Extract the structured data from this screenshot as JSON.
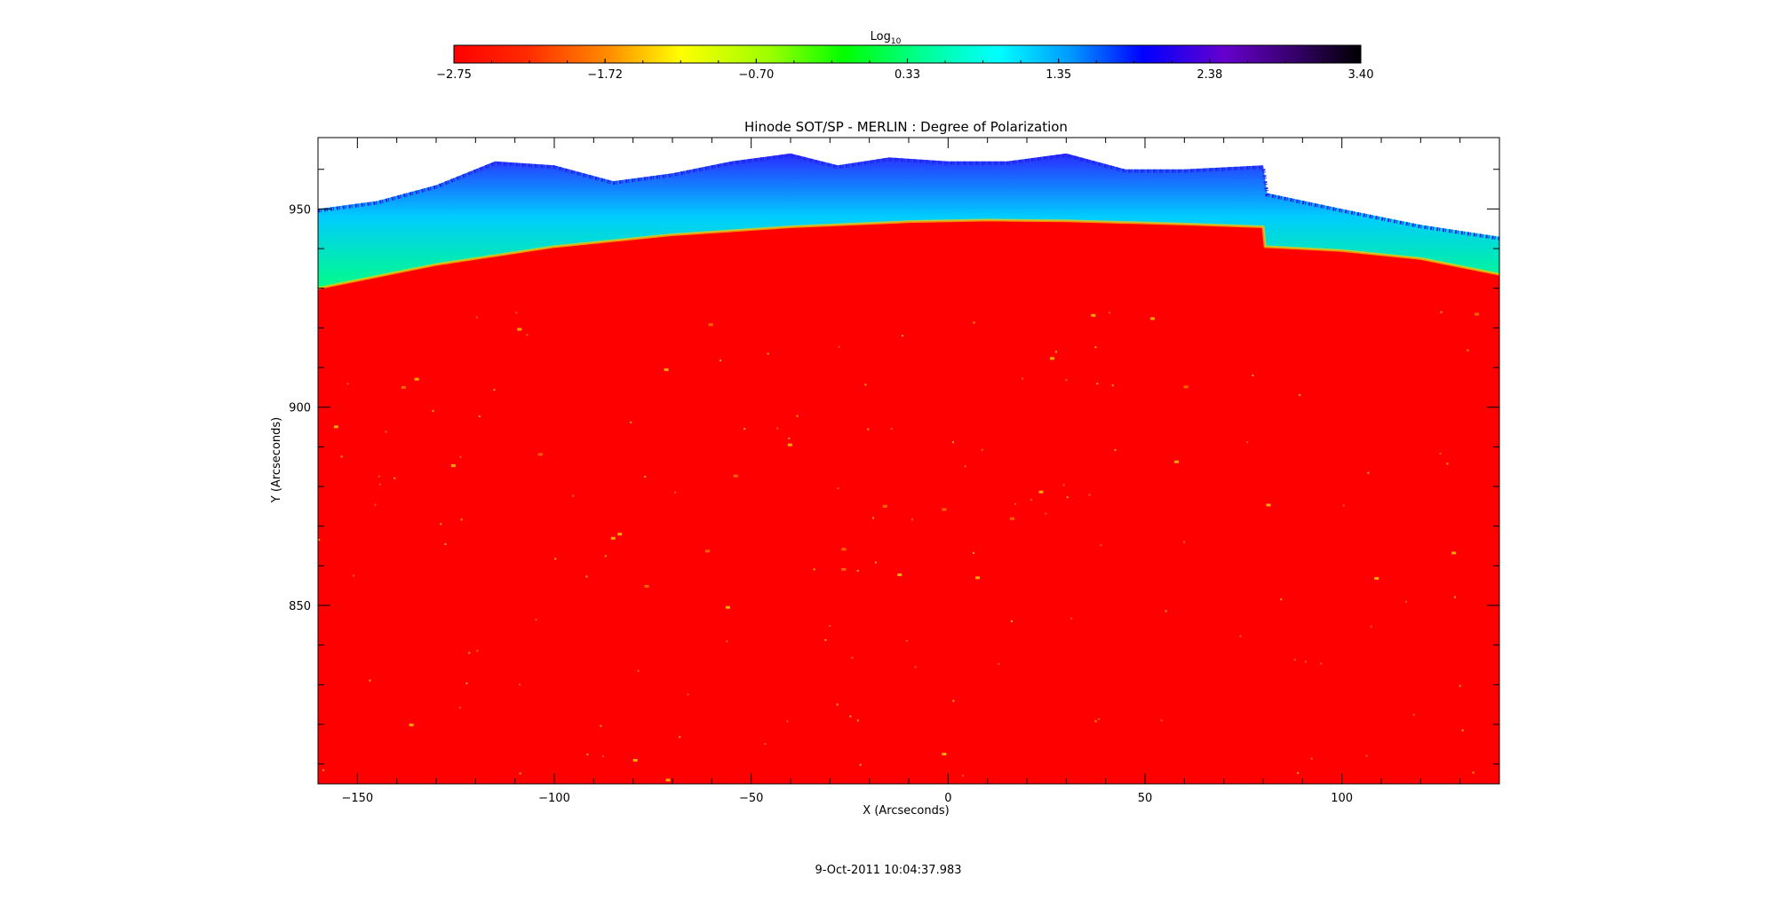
{
  "chart_data": {
    "type": "heatmap",
    "title": "Hinode SOT/SP - MERLIN : Degree of Polarization",
    "xlabel": "X (Arcseconds)",
    "ylabel": "Y (Arcseconds)",
    "xlim": [
      -160,
      140
    ],
    "ylim": [
      805,
      968
    ],
    "x_ticks": [
      -150,
      -100,
      -50,
      0,
      50,
      100
    ],
    "y_ticks": [
      850,
      900,
      950
    ],
    "grid": false,
    "colorbar": {
      "title": "Log",
      "title_subscript": "10",
      "min": -2.75,
      "max": 3.4,
      "ticks": [
        "-2.75",
        "-1.72",
        "-0.70",
        "0.33",
        "1.35",
        "2.38",
        "3.40"
      ],
      "placement": "top"
    },
    "limb_y": [
      {
        "x": -160,
        "y": 930
      },
      {
        "x": -130,
        "y": 936
      },
      {
        "x": -100,
        "y": 940.5
      },
      {
        "x": -70,
        "y": 943.5
      },
      {
        "x": -40,
        "y": 945.5
      },
      {
        "x": -10,
        "y": 946.8
      },
      {
        "x": 10,
        "y": 947.2
      },
      {
        "x": 30,
        "y": 947.0
      },
      {
        "x": 60,
        "y": 946.2
      },
      {
        "x": 80,
        "y": 945.5
      },
      {
        "x": 80.5,
        "y": 940.5
      },
      {
        "x": 100,
        "y": 939.5
      },
      {
        "x": 120,
        "y": 937.5
      },
      {
        "x": 140,
        "y": 933.5
      }
    ],
    "corona_top_y": [
      {
        "x": -160,
        "y": 950
      },
      {
        "x": -145,
        "y": 952
      },
      {
        "x": -130,
        "y": 956
      },
      {
        "x": -115,
        "y": 962
      },
      {
        "x": -100,
        "y": 961
      },
      {
        "x": -85,
        "y": 957
      },
      {
        "x": -70,
        "y": 959
      },
      {
        "x": -55,
        "y": 962
      },
      {
        "x": -40,
        "y": 964
      },
      {
        "x": -28,
        "y": 961
      },
      {
        "x": -15,
        "y": 963
      },
      {
        "x": 0,
        "y": 962
      },
      {
        "x": 15,
        "y": 962
      },
      {
        "x": 30,
        "y": 964
      },
      {
        "x": 45,
        "y": 960
      },
      {
        "x": 60,
        "y": 960
      },
      {
        "x": 80,
        "y": 961
      },
      {
        "x": 81,
        "y": 954
      },
      {
        "x": 100,
        "y": 950
      },
      {
        "x": 120,
        "y": 946
      },
      {
        "x": 140,
        "y": 943
      }
    ]
  },
  "timestamp": "9-Oct-2011 10:04:37.983"
}
